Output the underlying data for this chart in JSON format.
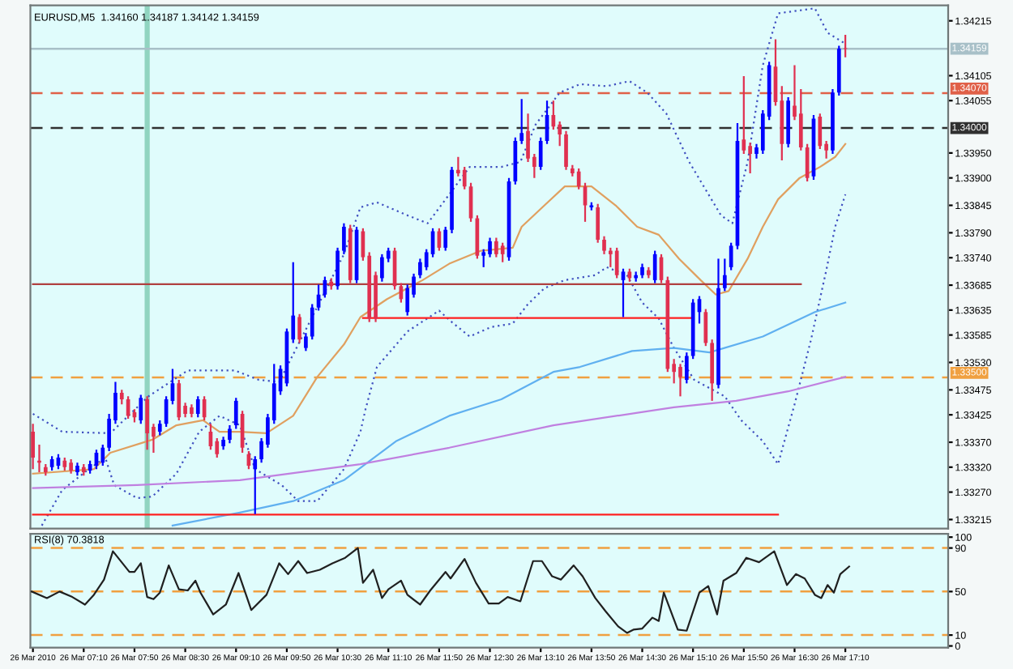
{
  "chart_data": [
    {
      "type": "candlestick",
      "title": "EURUSD,M5  1.34160 1.34187 1.34142 1.34159",
      "colors": [
        "#e03050",
        "#e03050",
        "#e03050",
        "#0000ff",
        "#0000ff",
        "#e03050",
        "#e03050",
        "#0000ff",
        "#e03050",
        "#0000ff",
        "#0000ff",
        "#0000ff",
        "#0000ff",
        "#0000ff",
        "#e03050",
        "#e03050",
        "#e03050",
        "#0000ff",
        "#e03050",
        "#e03050",
        "#0000ff",
        "#0000ff",
        "#0000ff",
        "#e03050",
        "#e03050",
        "#e03050",
        "#0000ff",
        "#e03050",
        "#e03050",
        "#e03050",
        "#0000ff",
        "#0000ff",
        "#0000ff",
        "#e03050",
        "#e03050",
        "#0000ff",
        "#0000ff",
        "#0000ff",
        "#0000ff",
        "#0000ff",
        "#0000ff",
        "#0000ff",
        "#e03050",
        "#0000ff",
        "#0000ff",
        "#0000ff",
        "#0000ff",
        "#e03050",
        "#0000ff",
        "#0000ff",
        "#e03050",
        "#0000ff",
        "#e03050",
        "#e03050",
        "#e03050",
        "#0000ff",
        "#0000ff",
        "#e03050",
        "#e03050",
        "#0000ff",
        "#0000ff",
        "#0000ff",
        "#0000ff",
        "#0000ff",
        "#e03050",
        "#0000ff",
        "#0000ff",
        "#e03050",
        "#e03050",
        "#e03050",
        "#e03050",
        "#0000ff",
        "#0000ff",
        "#e03050",
        "#e03050",
        "#0000ff",
        "#0000ff",
        "#0000ff",
        "#e03050",
        "#e03050",
        "#0000ff",
        "#0000ff",
        "#e03050",
        "#e03050",
        "#e03050",
        "#e03050",
        "#e03050",
        "#e03050",
        "#0000ff",
        "#e03050",
        "#e03050",
        "#e03050",
        "#e03050",
        "#0000ff",
        "#e03050",
        "#0000ff",
        "#0000ff",
        "#e03050",
        "#0000ff",
        "#e03050",
        "#e03050",
        "#e03050",
        "#e03050",
        "#0000ff",
        "#0000ff",
        "#0000ff",
        "#e03050",
        "#e03050",
        "#0000ff",
        "#0000ff",
        "#0000ff",
        "#0000ff",
        "#e03050",
        "#e03050",
        "#0000ff",
        "#0000ff",
        "#0000ff",
        "#e03050",
        "#e03050",
        "#0000ff",
        "#e03050",
        "#e03050",
        "#e03050",
        "#0000ff",
        "#e03050",
        "#e03050",
        "#0000ff",
        "#0000ff",
        "#e03050"
      ],
      "x": [
        "2010-03-26T06:30",
        "2010-03-26T06:35",
        "2010-03-26T06:40",
        "2010-03-26T06:45",
        "2010-03-26T06:50",
        "2010-03-26T06:55",
        "2010-03-26T07:00",
        "2010-03-26T07:05",
        "2010-03-26T07:10",
        "2010-03-26T07:15",
        "2010-03-26T07:20",
        "2010-03-26T07:25",
        "2010-03-26T07:30",
        "2010-03-26T07:35",
        "2010-03-26T07:40",
        "2010-03-26T07:45",
        "2010-03-26T07:50",
        "2010-03-26T07:55",
        "2010-03-26T08:00",
        "2010-03-26T08:05",
        "2010-03-26T08:10",
        "2010-03-26T08:15",
        "2010-03-26T08:20",
        "2010-03-26T08:25",
        "2010-03-26T08:30",
        "2010-03-26T08:35",
        "2010-03-26T08:40",
        "2010-03-26T08:45",
        "2010-03-26T08:50",
        "2010-03-26T08:55",
        "2010-03-26T09:00",
        "2010-03-26T09:05",
        "2010-03-26T09:10",
        "2010-03-26T09:15",
        "2010-03-26T09:20",
        "2010-03-26T09:25",
        "2010-03-26T09:30",
        "2010-03-26T09:35",
        "2010-03-26T09:40",
        "2010-03-26T09:45",
        "2010-03-26T09:50",
        "2010-03-26T09:55",
        "2010-03-26T10:00",
        "2010-03-26T10:05",
        "2010-03-26T10:10",
        "2010-03-26T10:15",
        "2010-03-26T10:20",
        "2010-03-26T10:25",
        "2010-03-26T10:30",
        "2010-03-26T10:35",
        "2010-03-26T10:40",
        "2010-03-26T10:45",
        "2010-03-26T10:50",
        "2010-03-26T10:55",
        "2010-03-26T11:00",
        "2010-03-26T11:05",
        "2010-03-26T11:10",
        "2010-03-26T11:15",
        "2010-03-26T11:20",
        "2010-03-26T11:25",
        "2010-03-26T11:30",
        "2010-03-26T11:35",
        "2010-03-26T11:40",
        "2010-03-26T11:45",
        "2010-03-26T11:50",
        "2010-03-26T11:55",
        "2010-03-26T12:00",
        "2010-03-26T12:05",
        "2010-03-26T12:10",
        "2010-03-26T12:15",
        "2010-03-26T12:20",
        "2010-03-26T12:25",
        "2010-03-26T12:30",
        "2010-03-26T12:35",
        "2010-03-26T12:40",
        "2010-03-26T12:45",
        "2010-03-26T12:50",
        "2010-03-26T12:55",
        "2010-03-26T13:00",
        "2010-03-26T13:05",
        "2010-03-26T13:10",
        "2010-03-26T13:15",
        "2010-03-26T13:20",
        "2010-03-26T13:25",
        "2010-03-26T13:30",
        "2010-03-26T13:35",
        "2010-03-26T13:40",
        "2010-03-26T13:45",
        "2010-03-26T13:50",
        "2010-03-26T13:55",
        "2010-03-26T14:00",
        "2010-03-26T14:05",
        "2010-03-26T14:10",
        "2010-03-26T14:15",
        "2010-03-26T14:20",
        "2010-03-26T14:25",
        "2010-03-26T14:30",
        "2010-03-26T14:35",
        "2010-03-26T14:40",
        "2010-03-26T14:45",
        "2010-03-26T14:50",
        "2010-03-26T14:55",
        "2010-03-26T15:00",
        "2010-03-26T15:05",
        "2010-03-26T15:10",
        "2010-03-26T15:15",
        "2010-03-26T15:20",
        "2010-03-26T15:25",
        "2010-03-26T15:30",
        "2010-03-26T15:35",
        "2010-03-26T15:40",
        "2010-03-26T15:45",
        "2010-03-26T15:50",
        "2010-03-26T15:55",
        "2010-03-26T16:00",
        "2010-03-26T16:05",
        "2010-03-26T16:10",
        "2010-03-26T16:15",
        "2010-03-26T16:20",
        "2010-03-26T16:25",
        "2010-03-26T16:30",
        "2010-03-26T16:35",
        "2010-03-26T16:40",
        "2010-03-26T16:45",
        "2010-03-26T16:50",
        "2010-03-26T16:55",
        "2010-03-26T17:00",
        "2010-03-26T17:05",
        "2010-03-26T17:10"
      ],
      "ohlc": [
        [
          1.33391,
          1.33407,
          1.33316,
          1.33339
        ],
        [
          1.33333,
          1.33365,
          1.3331,
          1.33329
        ],
        [
          1.3332,
          1.33326,
          1.33303,
          1.3331
        ],
        [
          1.3332,
          1.33342,
          1.33313,
          1.33336
        ],
        [
          1.33323,
          1.33346,
          1.33316,
          1.33339
        ],
        [
          1.33333,
          1.33339,
          1.33313,
          1.3332
        ],
        [
          1.33329,
          1.33336,
          1.33307,
          1.33313
        ],
        [
          1.3331,
          1.33329,
          1.33303,
          1.33323
        ],
        [
          1.3332,
          1.33326,
          1.33303,
          1.3331
        ],
        [
          1.33313,
          1.33333,
          1.33307,
          1.33326
        ],
        [
          1.33323,
          1.33355,
          1.33316,
          1.33349
        ],
        [
          1.33329,
          1.33365,
          1.33323,
          1.33359
        ],
        [
          1.33359,
          1.33427,
          1.33352,
          1.33417
        ],
        [
          1.33414,
          1.33491,
          1.33407,
          1.33469
        ],
        [
          1.33469,
          1.33475,
          1.33446,
          1.33456
        ],
        [
          1.33456,
          1.33462,
          1.33417,
          1.33423
        ],
        [
          1.3343,
          1.33436,
          1.3341,
          1.3342
        ],
        [
          1.33414,
          1.33465,
          1.33407,
          1.33459
        ],
        [
          1.33456,
          1.33462,
          1.33355,
          1.33388
        ],
        [
          1.33401,
          1.33407,
          1.33349,
          1.33381
        ],
        [
          1.33391,
          1.33414,
          1.33384,
          1.33407
        ],
        [
          1.33407,
          1.33462,
          1.33401,
          1.33456
        ],
        [
          1.33453,
          1.33517,
          1.33446,
          1.33488
        ],
        [
          1.33488,
          1.33495,
          1.33414,
          1.3342
        ],
        [
          1.33443,
          1.33449,
          1.3342,
          1.33427
        ],
        [
          1.3344,
          1.33446,
          1.3342,
          1.33427
        ],
        [
          1.33427,
          1.33462,
          1.3342,
          1.33456
        ],
        [
          1.33456,
          1.33462,
          1.33414,
          1.3342
        ],
        [
          1.33391,
          1.33407,
          1.33355,
          1.33362
        ],
        [
          1.33372,
          1.33378,
          1.33339,
          1.33346
        ],
        [
          1.33362,
          1.33381,
          1.33355,
          1.33375
        ],
        [
          1.33375,
          1.33404,
          1.33368,
          1.33397
        ],
        [
          1.33404,
          1.33459,
          1.33397,
          1.33453
        ],
        [
          1.33427,
          1.33433,
          1.33349,
          1.33359
        ],
        [
          1.33346,
          1.33352,
          1.33316,
          1.33323
        ],
        [
          1.33316,
          1.33342,
          1.33226,
          1.33336
        ],
        [
          1.33336,
          1.33378,
          1.33329,
          1.33372
        ],
        [
          1.33365,
          1.33427,
          1.33359,
          1.3342
        ],
        [
          1.33414,
          1.33527,
          1.33407,
          1.33488
        ],
        [
          1.33472,
          1.33524,
          1.33465,
          1.33517
        ],
        [
          1.33488,
          1.33598,
          1.33482,
          1.33592
        ],
        [
          1.33576,
          1.33731,
          1.33569,
          1.33624
        ],
        [
          1.33621,
          1.33627,
          1.33569,
          1.33576
        ],
        [
          1.33559,
          1.33589,
          1.33553,
          1.33582
        ],
        [
          1.33582,
          1.33647,
          1.33576,
          1.3364
        ],
        [
          1.3364,
          1.33686,
          1.33634,
          1.33666
        ],
        [
          1.33666,
          1.33702,
          1.3366,
          1.33695
        ],
        [
          1.33692,
          1.33699,
          1.33676,
          1.33683
        ],
        [
          1.33683,
          1.3376,
          1.33676,
          1.33754
        ],
        [
          1.33754,
          1.33809,
          1.33747,
          1.33802
        ],
        [
          1.33799,
          1.33806,
          1.33689,
          1.33695
        ],
        [
          1.33695,
          1.33802,
          1.33689,
          1.33796
        ],
        [
          1.33793,
          1.33799,
          1.33734,
          1.33741
        ],
        [
          1.33744,
          1.33751,
          1.33611,
          1.33618
        ],
        [
          1.33705,
          1.33712,
          1.33611,
          1.33618
        ],
        [
          1.33699,
          1.33747,
          1.33692,
          1.33741
        ],
        [
          1.33738,
          1.3376,
          1.33731,
          1.33754
        ],
        [
          1.33754,
          1.3376,
          1.33676,
          1.33683
        ],
        [
          1.33683,
          1.33689,
          1.3365,
          1.33657
        ],
        [
          1.33631,
          1.33686,
          1.33624,
          1.33679
        ],
        [
          1.33666,
          1.33708,
          1.3366,
          1.33702
        ],
        [
          1.33705,
          1.33738,
          1.33699,
          1.33731
        ],
        [
          1.33721,
          1.33757,
          1.33715,
          1.33751
        ],
        [
          1.33747,
          1.33799,
          1.33741,
          1.33793
        ],
        [
          1.33793,
          1.33799,
          1.33754,
          1.3376
        ],
        [
          1.3376,
          1.33802,
          1.33754,
          1.33796
        ],
        [
          1.33796,
          1.33922,
          1.33789,
          1.33916
        ],
        [
          1.33916,
          1.33942,
          1.33903,
          1.33909
        ],
        [
          1.33916,
          1.33922,
          1.33877,
          1.33883
        ],
        [
          1.33883,
          1.3389,
          1.33812,
          1.33819
        ],
        [
          1.33819,
          1.33825,
          1.33738,
          1.33744
        ],
        [
          1.33744,
          1.33757,
          1.33721,
          1.33751
        ],
        [
          1.33747,
          1.3378,
          1.33741,
          1.33773
        ],
        [
          1.33773,
          1.3378,
          1.33741,
          1.33747
        ],
        [
          1.33764,
          1.3377,
          1.33731,
          1.33747
        ],
        [
          1.33741,
          1.339,
          1.33734,
          1.33893
        ],
        [
          1.33893,
          1.33981,
          1.33887,
          1.33974
        ],
        [
          1.33974,
          1.34058,
          1.33968,
          1.3399
        ],
        [
          1.33994,
          1.34029,
          1.33932,
          1.33939
        ],
        [
          1.33942,
          1.33948,
          1.339,
          1.33922
        ],
        [
          1.33922,
          1.33981,
          1.33916,
          1.33974
        ],
        [
          1.33974,
          1.34055,
          1.33968,
          1.34026
        ],
        [
          1.34026,
          1.34055,
          1.33997,
          1.34003
        ],
        [
          1.34007,
          1.34013,
          1.33964,
          1.33987
        ],
        [
          1.33987,
          1.33994,
          1.33916,
          1.33922
        ],
        [
          1.33919,
          1.33926,
          1.33903,
          1.33909
        ],
        [
          1.33913,
          1.33919,
          1.33877,
          1.33883
        ],
        [
          1.33883,
          1.3389,
          1.33812,
          1.33845
        ],
        [
          1.33841,
          1.33851,
          1.33835,
          1.33845
        ],
        [
          1.33841,
          1.33848,
          1.3377,
          1.33776
        ],
        [
          1.33776,
          1.33783,
          1.33747,
          1.33754
        ],
        [
          1.33754,
          1.3376,
          1.33721,
          1.33747
        ],
        [
          1.33754,
          1.3376,
          1.33699,
          1.33705
        ],
        [
          1.33695,
          1.33718,
          1.33621,
          1.33712
        ],
        [
          1.33712,
          1.33718,
          1.33692,
          1.33699
        ],
        [
          1.33699,
          1.33712,
          1.33692,
          1.33705
        ],
        [
          1.33705,
          1.33728,
          1.33699,
          1.33721
        ],
        [
          1.33715,
          1.33721,
          1.33699,
          1.33705
        ],
        [
          1.33695,
          1.33754,
          1.33689,
          1.33747
        ],
        [
          1.33741,
          1.33747,
          1.33689,
          1.33695
        ],
        [
          1.33695,
          1.33702,
          1.33511,
          1.33517
        ],
        [
          1.33527,
          1.33537,
          1.33488,
          1.33511
        ],
        [
          1.33521,
          1.33527,
          1.33462,
          1.33501
        ],
        [
          1.33495,
          1.3355,
          1.33488,
          1.33543
        ],
        [
          1.33543,
          1.33657,
          1.33537,
          1.3365
        ],
        [
          1.33631,
          1.33663,
          1.33608,
          1.33657
        ],
        [
          1.33631,
          1.33637,
          1.33563,
          1.33569
        ],
        [
          1.33569,
          1.33576,
          1.33453,
          1.33488
        ],
        [
          1.33485,
          1.33738,
          1.33478,
          1.33679
        ],
        [
          1.33679,
          1.33738,
          1.33673,
          1.33705
        ],
        [
          1.33721,
          1.3377,
          1.33715,
          1.33764
        ],
        [
          1.33764,
          1.3401,
          1.33757,
          1.33974
        ],
        [
          1.33977,
          1.34104,
          1.33948,
          1.33955
        ],
        [
          1.33964,
          1.33971,
          1.33909,
          1.33948
        ],
        [
          1.33948,
          1.33968,
          1.33939,
          1.33961
        ],
        [
          1.33955,
          1.34036,
          1.33948,
          1.34029
        ],
        [
          1.34023,
          1.34133,
          1.34016,
          1.34126
        ],
        [
          1.34123,
          1.34178,
          1.34045,
          1.34052
        ],
        [
          1.34055,
          1.34084,
          1.33935,
          1.33968
        ],
        [
          1.33968,
          1.34062,
          1.33961,
          1.34055
        ],
        [
          1.34045,
          1.34126,
          1.34016,
          1.34023
        ],
        [
          1.34029,
          1.34078,
          1.33955,
          1.33961
        ],
        [
          1.33961,
          1.33968,
          1.33893,
          1.339
        ],
        [
          1.33903,
          1.34026,
          1.33896,
          1.34019
        ],
        [
          1.34023,
          1.34029,
          1.33958,
          1.33964
        ],
        [
          1.33968,
          1.33974,
          1.33939,
          1.33955
        ],
        [
          1.33955,
          1.34078,
          1.33948,
          1.34071
        ],
        [
          1.34071,
          1.34165,
          1.34065,
          1.34159
        ],
        [
          1.3416,
          1.34187,
          1.34142,
          1.34159
        ]
      ],
      "series": [
        {
          "type": "line",
          "line_style": "dotted",
          "color": "#4050c0",
          "x": [
            "2010-03-26T06:30",
            "2010-03-26T06:53",
            "2010-03-26T07:31",
            "2010-03-26T08:01",
            "2010-03-26T08:32",
            "2010-03-26T09:09",
            "2010-03-26T09:28",
            "2010-03-26T09:44",
            "2010-03-26T10:01",
            "2010-03-26T10:35",
            "2010-03-26T10:48",
            "2010-03-26T11:01",
            "2010-03-26T11:25",
            "2010-03-26T11:41",
            "2010-03-26T11:58",
            "2010-03-26T12:14",
            "2010-03-26T12:39",
            "2010-03-26T12:54",
            "2010-03-26T13:06",
            "2010-03-26T13:25",
            "2010-03-26T13:41",
            "2010-03-26T14:02",
            "2010-03-26T14:20",
            "2010-03-26T14:34",
            "2010-03-26T14:49",
            "2010-03-26T15:07",
            "2010-03-26T15:32",
            "2010-03-26T15:41",
            "2010-03-26T15:53",
            "2010-03-26T16:05",
            "2010-03-26T16:17",
            "2010-03-26T16:46",
            "2010-03-26T16:56",
            "2010-03-26T17:10"
          ],
          "values": [
            1.33427,
            1.33391,
            1.33388,
            1.33462,
            1.33514,
            1.33514,
            1.33495,
            1.33491,
            1.33576,
            1.33747,
            1.33841,
            1.33851,
            1.33825,
            1.33809,
            1.33867,
            1.33922,
            1.33922,
            1.33932,
            1.34007,
            1.34071,
            1.34088,
            1.34084,
            1.34094,
            1.34071,
            1.34029,
            1.33932,
            1.33825,
            1.33809,
            1.33932,
            1.34126,
            1.3423,
            1.3424,
            1.34191,
            1.34169
          ]
        },
        {
          "type": "line",
          "line_style": "dotted",
          "color": "#4050c0",
          "x": [
            "2010-03-26T06:37",
            "2010-03-26T06:53",
            "2010-03-26T07:14",
            "2010-03-26T07:27",
            "2010-03-26T07:34",
            "2010-03-26T07:52",
            "2010-03-26T08:04",
            "2010-03-26T08:23",
            "2010-03-26T08:41",
            "2010-03-26T08:57",
            "2010-03-26T09:13",
            "2010-03-26T09:25",
            "2010-03-26T09:46",
            "2010-03-26T09:59",
            "2010-03-26T10:14",
            "2010-03-26T10:35",
            "2010-03-26T10:48",
            "2010-03-26T10:52",
            "2010-03-26T11:01",
            "2010-03-26T11:25",
            "2010-03-26T11:50",
            "2010-03-26T11:58",
            "2010-03-26T12:14",
            "2010-03-26T12:31",
            "2010-03-26T12:48",
            "2010-03-26T13:00",
            "2010-03-26T13:13",
            "2010-03-26T13:29",
            "2010-03-26T13:53",
            "2010-03-26T14:02",
            "2010-03-26T14:18",
            "2010-03-26T14:30",
            "2010-03-26T14:43",
            "2010-03-26T14:55",
            "2010-03-26T15:11",
            "2010-03-26T15:35",
            "2010-03-26T15:48",
            "2010-03-26T16:05",
            "2010-03-26T16:17",
            "2010-03-26T16:30",
            "2010-03-26T16:43",
            "2010-03-26T16:55",
            "2010-03-26T17:02",
            "2010-03-26T17:10"
          ],
          "values": [
            1.33203,
            1.33274,
            1.33316,
            1.33339,
            1.33284,
            1.33258,
            1.33261,
            1.33307,
            1.33391,
            1.33423,
            1.33404,
            1.33316,
            1.33284,
            1.33252,
            1.33252,
            1.33316,
            1.33391,
            1.33436,
            1.33521,
            1.33592,
            1.33634,
            1.33615,
            1.33582,
            1.33601,
            1.33608,
            1.33647,
            1.33679,
            1.33695,
            1.33705,
            1.33721,
            1.33705,
            1.3365,
            1.33618,
            1.33559,
            1.33495,
            1.33462,
            1.33414,
            1.33372,
            1.33326,
            1.33446,
            1.33576,
            1.33715,
            1.33802,
            1.33867
          ]
        },
        {
          "type": "line",
          "color": "#e0a060",
          "x": [
            "2010-03-26T06:30",
            "2010-03-26T07:18",
            "2010-03-26T07:31",
            "2010-03-26T08:04",
            "2010-03-26T08:23",
            "2010-03-26T08:44",
            "2010-03-26T08:57",
            "2010-03-26T09:13",
            "2010-03-26T09:34",
            "2010-03-26T09:55",
            "2010-03-26T10:14",
            "2010-03-26T10:35",
            "2010-03-26T10:48",
            "2010-03-26T11:09",
            "2010-03-26T11:37",
            "2010-03-26T11:58",
            "2010-03-26T12:23",
            "2010-03-26T12:48",
            "2010-03-26T12:55",
            "2010-03-26T13:13",
            "2010-03-26T13:29",
            "2010-03-26T13:50",
            "2010-03-26T14:09",
            "2010-03-26T14:26",
            "2010-03-26T14:43",
            "2010-03-26T14:59",
            "2010-03-26T15:16",
            "2010-03-26T15:28",
            "2010-03-26T15:38",
            "2010-03-26T15:53",
            "2010-03-26T16:05",
            "2010-03-26T16:17",
            "2010-03-26T16:34",
            "2010-03-26T16:50",
            "2010-03-26T17:02",
            "2010-03-26T17:10"
          ],
          "values": [
            1.33307,
            1.33316,
            1.33349,
            1.33375,
            1.33404,
            1.33414,
            1.33391,
            1.33391,
            1.33388,
            1.33423,
            1.33501,
            1.33566,
            1.33621,
            1.33657,
            1.33695,
            1.33728,
            1.33754,
            1.3376,
            1.33802,
            1.33845,
            1.33883,
            1.33883,
            1.33845,
            1.33802,
            1.33786,
            1.33738,
            1.33695,
            1.33666,
            1.33673,
            1.33738,
            1.33802,
            1.33857,
            1.339,
            1.33922,
            1.33942,
            1.33968
          ]
        },
        {
          "type": "line",
          "color": "#60b0f0",
          "x": [
            "2010-03-26T08:20",
            "2010-03-26T09:13",
            "2010-03-26T09:55",
            "2010-03-26T10:35",
            "2010-03-26T11:16",
            "2010-03-26T11:58",
            "2010-03-26T12:39",
            "2010-03-26T13:20",
            "2010-03-26T13:41",
            "2010-03-26T14:22",
            "2010-03-26T14:55",
            "2010-03-26T15:23",
            "2010-03-26T16:05",
            "2010-03-26T16:46",
            "2010-03-26T17:10"
          ],
          "values": [
            1.33203,
            1.33229,
            1.33252,
            1.33294,
            1.33372,
            1.33423,
            1.33456,
            1.33511,
            1.33521,
            1.33553,
            1.33559,
            1.3355,
            1.33582,
            1.33631,
            1.3365
          ]
        },
        {
          "type": "line",
          "color": "#c080e0",
          "x": [
            "2010-03-26T06:30",
            "2010-03-26T07:52",
            "2010-03-26T09:13",
            "2010-03-26T10:48",
            "2010-03-26T11:58",
            "2010-03-26T13:20",
            "2010-03-26T14:55",
            "2010-03-26T15:44",
            "2010-03-26T16:25",
            "2010-03-26T17:10"
          ],
          "values": [
            1.33278,
            1.33284,
            1.33294,
            1.33326,
            1.33359,
            1.33404,
            1.3344,
            1.33453,
            1.33472,
            1.33501
          ]
        },
        {
          "type": "line",
          "color": "#b04040",
          "x": [
            "2010-03-26T06:30",
            "2010-03-26T16:35"
          ],
          "values": [
            1.33687,
            1.33687
          ]
        },
        {
          "type": "line",
          "color": "#ff2020",
          "x": [
            "2010-03-26T10:50",
            "2010-03-26T15:08"
          ],
          "values": [
            1.33619,
            1.33619
          ]
        },
        {
          "type": "line",
          "color": "#ff2020",
          "x": [
            "2010-03-26T06:30",
            "2010-03-26T16:17"
          ],
          "values": [
            1.33225,
            1.33225
          ]
        }
      ],
      "ref_lines": [
        {
          "axis": "y",
          "value": 1.34159,
          "label": "1.34159",
          "color": "#a8c0c8",
          "line_style": "solid"
        },
        {
          "axis": "y",
          "value": 1.3407,
          "label": "1.34070",
          "color": "#e06048",
          "line_style": "dashed"
        },
        {
          "axis": "y",
          "value": 1.34,
          "label": "1.34000",
          "color": "#303030",
          "line_style": "dashed"
        },
        {
          "axis": "y",
          "value": 1.335,
          "label": "1.33500",
          "color": "#f0a040",
          "line_style": "dashed"
        }
      ],
      "bands": [
        {
          "axis": "x",
          "from": "2010-03-26T07:58",
          "to": "2010-03-26T08:02",
          "color": "#90d4c0"
        }
      ],
      "xlim": [
        "2010-03-26T06:28",
        "2010-03-26T18:31"
      ],
      "ylim": [
        1.33197,
        1.34246
      ],
      "yticks": [
        1.34215,
        1.34105,
        1.34055,
        {
          "value": 1.3395,
          "label": "1.33950"
        },
        {
          "value": 1.339,
          "label": "1.33900"
        },
        1.33845,
        {
          "value": 1.3379,
          "label": "1.33790"
        },
        {
          "value": 1.3374,
          "label": "1.33740"
        },
        1.33685,
        1.33635,
        1.33585,
        {
          "value": 1.3353,
          "label": "1.33530"
        },
        1.33475,
        1.33425,
        {
          "value": 1.3337,
          "label": "1.33370"
        },
        {
          "value": 1.3332,
          "label": "1.33320"
        },
        {
          "value": 1.3327,
          "label": "1.33270"
        },
        1.33215
      ],
      "tick_labels": "y"
    },
    {
      "type": "line",
      "title": "RSI(8) 70.3818",
      "series": [
        {
          "color": "#202020",
          "x": [
            "2010-03-26T06:29",
            "2010-03-26T06:41",
            "2010-03-26T06:51",
            "2010-03-26T07:01",
            "2010-03-26T07:11",
            "2010-03-26T07:18",
            "2010-03-26T07:26",
            "2010-03-26T07:33",
            "2010-03-26T07:46",
            "2010-03-26T07:50",
            "2010-03-26T07:55",
            "2010-03-26T08:00",
            "2010-03-26T08:05",
            "2010-03-26T08:10",
            "2010-03-26T08:17",
            "2010-03-26T08:25",
            "2010-03-26T08:32",
            "2010-03-26T08:38",
            "2010-03-26T08:42",
            "2010-03-26T08:52",
            "2010-03-26T09:02",
            "2010-03-26T09:12",
            "2010-03-26T09:22",
            "2010-03-26T09:34",
            "2010-03-26T09:44",
            "2010-03-26T09:51",
            "2010-03-26T09:59",
            "2010-03-26T10:06",
            "2010-03-26T10:16",
            "2010-03-26T10:26",
            "2010-03-26T10:36",
            "2010-03-26T10:46",
            "2010-03-26T10:50",
            "2010-03-26T10:58",
            "2010-03-26T11:05",
            "2010-03-26T11:10",
            "2010-03-26T11:20",
            "2010-03-26T11:25",
            "2010-03-26T11:35",
            "2010-03-26T11:43",
            "2010-03-26T11:55",
            "2010-03-26T11:59",
            "2010-03-26T12:10",
            "2010-03-26T12:19",
            "2010-03-26T12:29",
            "2010-03-26T12:37",
            "2010-03-26T12:44",
            "2010-03-26T12:54",
            "2010-03-26T13:04",
            "2010-03-26T13:11",
            "2010-03-26T13:19",
            "2010-03-26T13:26",
            "2010-03-26T13:36",
            "2010-03-26T13:43",
            "2010-03-26T13:53",
            "2010-03-26T14:01",
            "2010-03-26T14:11",
            "2010-03-26T14:18",
            "2010-03-26T14:23",
            "2010-03-26T14:30",
            "2010-03-26T14:38",
            "2010-03-26T14:43",
            "2010-03-26T14:47",
            "2010-03-26T14:58",
            "2010-03-26T15:05",
            "2010-03-26T15:15",
            "2010-03-26T15:22",
            "2010-03-26T15:29",
            "2010-03-26T15:34",
            "2010-03-26T15:44",
            "2010-03-26T15:52",
            "2010-03-26T16:02",
            "2010-03-26T16:14",
            "2010-03-26T16:24",
            "2010-03-26T16:31",
            "2010-03-26T16:38",
            "2010-03-26T16:46",
            "2010-03-26T16:51",
            "2010-03-26T16:56",
            "2010-03-26T17:01",
            "2010-03-26T17:06",
            "2010-03-26T17:13"
          ],
          "values": [
            50,
            44,
            50,
            45,
            38,
            47,
            61,
            87,
            68,
            68,
            76,
            45,
            43,
            49,
            74,
            52,
            51,
            60,
            49,
            29,
            38,
            67,
            33,
            47,
            76,
            66,
            78,
            67,
            70,
            76,
            81,
            90,
            58,
            70,
            44,
            52,
            60,
            47,
            38,
            51,
            68,
            62,
            80,
            58,
            39,
            39,
            45,
            41,
            78,
            78,
            64,
            61,
            74,
            64,
            44,
            32,
            18,
            12,
            15,
            16,
            26,
            23,
            49,
            15,
            14,
            49,
            55,
            29,
            60,
            67,
            81,
            77,
            87,
            56,
            66,
            62,
            47,
            44,
            56,
            49,
            66,
            73
          ]
        }
      ],
      "ref_lines": [
        {
          "axis": "y",
          "value": 90,
          "color": "#f0a040",
          "line_style": "dashed"
        },
        {
          "axis": "y",
          "value": 50,
          "color": "#f0a040",
          "line_style": "dashed"
        },
        {
          "axis": "y",
          "value": 10,
          "color": "#f0a040",
          "line_style": "dashed"
        }
      ],
      "xlim": [
        "2010-03-26T06:28",
        "2010-03-26T18:31"
      ],
      "ylim": [
        -1.5,
        103
      ],
      "yticks": [
        100,
        90,
        50,
        10,
        0
      ],
      "xticks": [
        {
          "value": "2010-03-26T06:30",
          "label": "26 Mar 2010"
        },
        {
          "value": "2010-03-26T07:10",
          "label": "26 Mar 07:10"
        },
        {
          "value": "2010-03-26T07:50",
          "label": "26 Mar 07:50"
        },
        {
          "value": "2010-03-26T08:30",
          "label": "26 Mar 08:30"
        },
        {
          "value": "2010-03-26T09:10",
          "label": "26 Mar 09:10"
        },
        {
          "value": "2010-03-26T09:50",
          "label": "26 Mar 09:50"
        },
        {
          "value": "2010-03-26T10:30",
          "label": "26 Mar 10:30"
        },
        {
          "value": "2010-03-26T11:10",
          "label": "26 Mar 11:10"
        },
        {
          "value": "2010-03-26T11:50",
          "label": "26 Mar 11:50"
        },
        {
          "value": "2010-03-26T12:30",
          "label": "26 Mar 12:30"
        },
        {
          "value": "2010-03-26T13:10",
          "label": "26 Mar 13:10"
        },
        {
          "value": "2010-03-26T13:50",
          "label": "26 Mar 13:50"
        },
        {
          "value": "2010-03-26T14:30",
          "label": "26 Mar 14:30"
        },
        {
          "value": "2010-03-26T15:10",
          "label": "26 Mar 15:10"
        },
        {
          "value": "2010-03-26T15:50",
          "label": "26 Mar 15:50"
        },
        {
          "value": "2010-03-26T16:30",
          "label": "26 Mar 16:30"
        },
        {
          "value": "2010-03-26T17:10",
          "label": "26 Mar 17:10"
        }
      ]
    }
  ]
}
